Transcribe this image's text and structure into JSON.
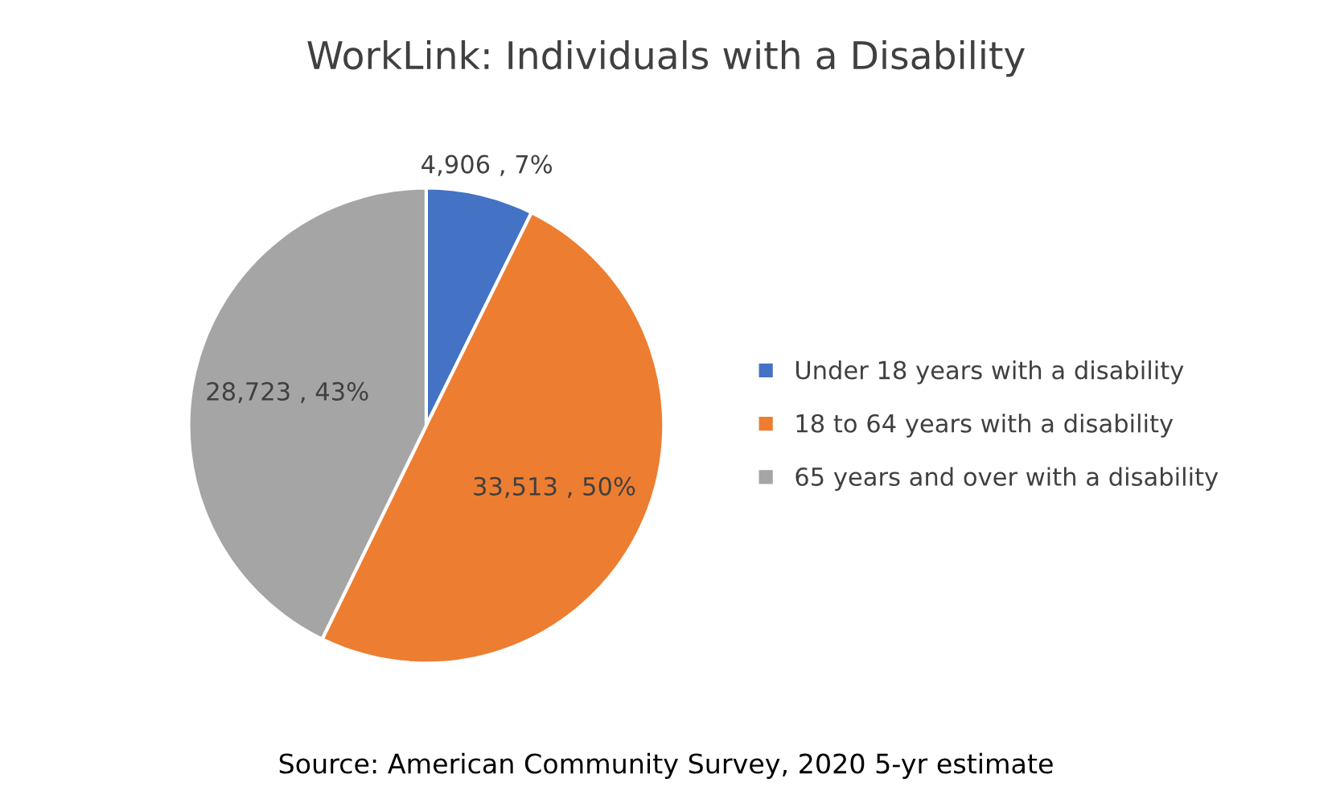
{
  "chart_data": {
    "type": "pie",
    "title": "WorkLink: Individuals with a Disability",
    "categories": [
      "Under 18 years with a disability",
      "18 to 64 years with a disability",
      "65 years and over with a disability"
    ],
    "values": [
      4906,
      33513,
      28723
    ],
    "value_labels": [
      "4,906 , 7%",
      "33,513 , 50%",
      "28,723 , 43%"
    ],
    "colors": [
      "#4472c4",
      "#ed7d31",
      "#a5a5a5"
    ],
    "legend": "right",
    "annotations": [
      "Source: American Community Survey, 2020 5-yr estimate"
    ]
  }
}
